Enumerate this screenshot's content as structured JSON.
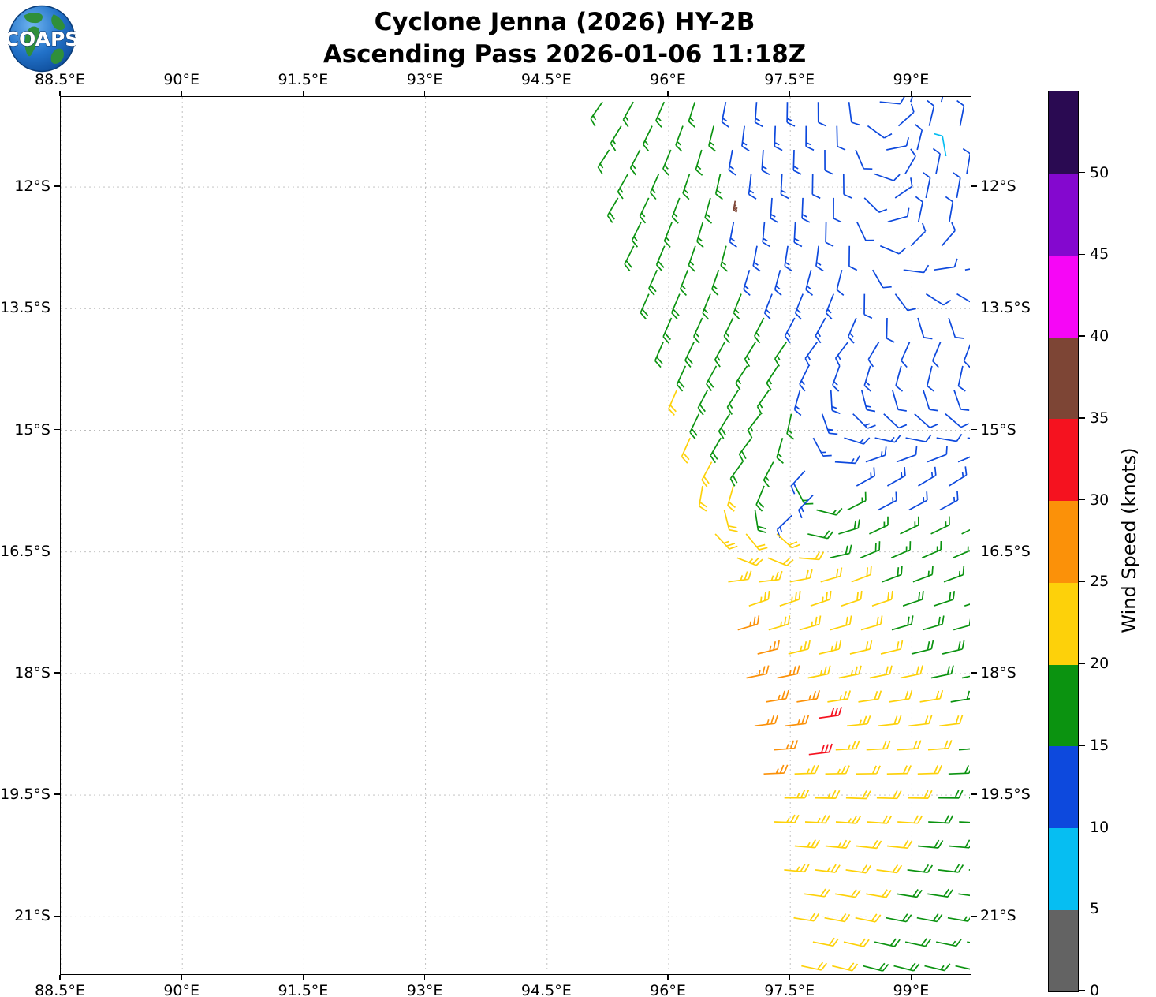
{
  "title": {
    "line1": "Cyclone Jenna (2026) HY-2B",
    "line2": "Ascending Pass 2026-01-06 11:18Z"
  },
  "logo": {
    "text": "COAPS"
  },
  "axes": {
    "x_ticks": [
      {
        "lon": 88.5,
        "label": "88.5°E"
      },
      {
        "lon": 90.0,
        "label": "90°E"
      },
      {
        "lon": 91.5,
        "label": "91.5°E"
      },
      {
        "lon": 93.0,
        "label": "93°E"
      },
      {
        "lon": 94.5,
        "label": "94.5°E"
      },
      {
        "lon": 96.0,
        "label": "96°E"
      },
      {
        "lon": 97.5,
        "label": "97.5°E"
      },
      {
        "lon": 99.0,
        "label": "99°E"
      }
    ],
    "y_ticks": [
      {
        "lat": -12.0,
        "label": "12°S"
      },
      {
        "lat": -13.5,
        "label": "13.5°S"
      },
      {
        "lat": -15.0,
        "label": "15°S"
      },
      {
        "lat": -16.5,
        "label": "16.5°S"
      },
      {
        "lat": -18.0,
        "label": "18°S"
      },
      {
        "lat": -19.5,
        "label": "19.5°S"
      },
      {
        "lat": -21.0,
        "label": "21°S"
      }
    ],
    "grid_color": "#bbbbbb"
  },
  "colorbar": {
    "label": "Wind Speed (knots)",
    "tick_values": [
      0,
      5,
      10,
      15,
      20,
      25,
      30,
      35,
      40,
      45,
      50
    ],
    "vmax": 55,
    "segments": [
      {
        "from": 0,
        "to": 5,
        "color": "#636363"
      },
      {
        "from": 5,
        "to": 10,
        "color": "#06bef2"
      },
      {
        "from": 10,
        "to": 15,
        "color": "#0d49dd"
      },
      {
        "from": 15,
        "to": 20,
        "color": "#0b9310"
      },
      {
        "from": 20,
        "to": 25,
        "color": "#fdd10a"
      },
      {
        "from": 25,
        "to": 30,
        "color": "#fb9109"
      },
      {
        "from": 30,
        "to": 35,
        "color": "#f5121f"
      },
      {
        "from": 35,
        "to": 40,
        "color": "#7d4535"
      },
      {
        "from": 40,
        "to": 45,
        "color": "#f606f6"
      },
      {
        "from": 45,
        "to": 50,
        "color": "#8408cf"
      },
      {
        "from": 50,
        "to": 55,
        "color": "#2a0a52"
      }
    ]
  },
  "chart_data": {
    "type": "wind_barbs",
    "storm_name": "Jenna",
    "season": "2026",
    "satellite": "HY-2B",
    "pass_type": "Ascending",
    "datetime_utc": "2026-01-06 11:18Z",
    "units": "knots",
    "lon_range": [
      88.5,
      99.75
    ],
    "lat_range": [
      -21.72,
      -10.89
    ],
    "barb_grid": {
      "lat_start": -10.95,
      "lat_step": 0.296,
      "rows": 38,
      "lon_step": 0.38,
      "row_stagger_lon": 0.19,
      "lon_end": 99.75
    },
    "swath_left_boundary": [
      [
        -10.92,
        95.18
      ],
      [
        -12.0,
        95.33
      ],
      [
        -13.0,
        95.66
      ],
      [
        -14.0,
        95.96
      ],
      [
        -15.0,
        96.24
      ],
      [
        -16.0,
        96.5
      ],
      [
        -17.0,
        96.77
      ],
      [
        -18.0,
        96.95
      ],
      [
        -19.0,
        97.12
      ],
      [
        -20.0,
        97.34
      ],
      [
        -21.0,
        97.54
      ],
      [
        -22.0,
        97.7
      ]
    ],
    "field_anchors": {
      "comment": "speed in knots and wind from-direction (deg, continuous) sampled off the plot; bilinear interpolation between anchors",
      "lats": [
        -11.0,
        -12.5,
        -14.0,
        -15.5,
        -17.0,
        -18.5,
        -20.0,
        -21.9
      ],
      "lons": [
        95.2,
        96.2,
        97.2,
        98.2,
        99.0,
        99.8
      ],
      "speed": [
        [
          17,
          16,
          13,
          12,
          12,
          12
        ],
        [
          18,
          17,
          13,
          12,
          12,
          12
        ],
        [
          22,
          18,
          16,
          13,
          12,
          12
        ],
        [
          25,
          23,
          17,
          13,
          12,
          13
        ],
        [
          27,
          27,
          24,
          21,
          18,
          17
        ],
        [
          28,
          27,
          27,
          23,
          21,
          19
        ],
        [
          26,
          26,
          25,
          22,
          20,
          17
        ],
        [
          21,
          21,
          21,
          20,
          17,
          16
        ]
      ],
      "dir_from": [
        [
          215,
          200,
          182,
          178,
          15,
          10
        ],
        [
          212,
          200,
          185,
          180,
          12,
          8
        ],
        [
          200,
          205,
          215,
          220,
          216,
          213
        ],
        [
          192,
          202,
          222,
          60,
          58,
          55
        ],
        [
          70,
          70,
          70,
          70,
          70,
          72
        ],
        [
          85,
          83,
          82,
          83,
          82,
          81
        ],
        [
          92,
          92,
          93,
          96,
          95,
          94
        ],
        [
          97,
          99,
          101,
          106,
          105,
          103
        ]
      ]
    },
    "anomalies": [
      {
        "lon": 99.42,
        "lat": -11.62,
        "speed": 8,
        "dir": 350,
        "note": "light cyan barb near NE edge"
      },
      {
        "lon": 96.82,
        "lat": -12.17,
        "speed": 37,
        "dir": 190,
        "scale": 0.45,
        "note": "small dark-red flagged cell"
      },
      {
        "lon": 97.68,
        "lat": -15.5,
        "speed": 13,
        "dir": 222,
        "note": "low-wind blue patch"
      },
      {
        "lon": 97.78,
        "lat": -15.8,
        "speed": 13,
        "dir": 224,
        "note": "low-wind blue patch"
      },
      {
        "lon": 97.52,
        "lat": -16.05,
        "speed": 13,
        "dir": 226,
        "note": "low-wind blue patch"
      },
      {
        "lon": 97.85,
        "lat": -18.55,
        "speed": 31,
        "dir": 82,
        "note": "red 30+ kt barb"
      },
      {
        "lon": 97.73,
        "lat": -19.0,
        "speed": 31,
        "dir": 83,
        "note": "red 30+ kt barb"
      }
    ],
    "speed_color_bins": [
      [
        5,
        "#636363"
      ],
      [
        10,
        "#06bef2"
      ],
      [
        15,
        "#0d49dd"
      ],
      [
        20,
        "#0b9310"
      ],
      [
        25,
        "#fdd10a"
      ],
      [
        30,
        "#fb9109"
      ],
      [
        35,
        "#f5121f"
      ],
      [
        40,
        "#7d4535"
      ],
      [
        45,
        "#f606f6"
      ],
      [
        50,
        "#8408cf"
      ],
      [
        99,
        "#2a0a52"
      ]
    ]
  }
}
